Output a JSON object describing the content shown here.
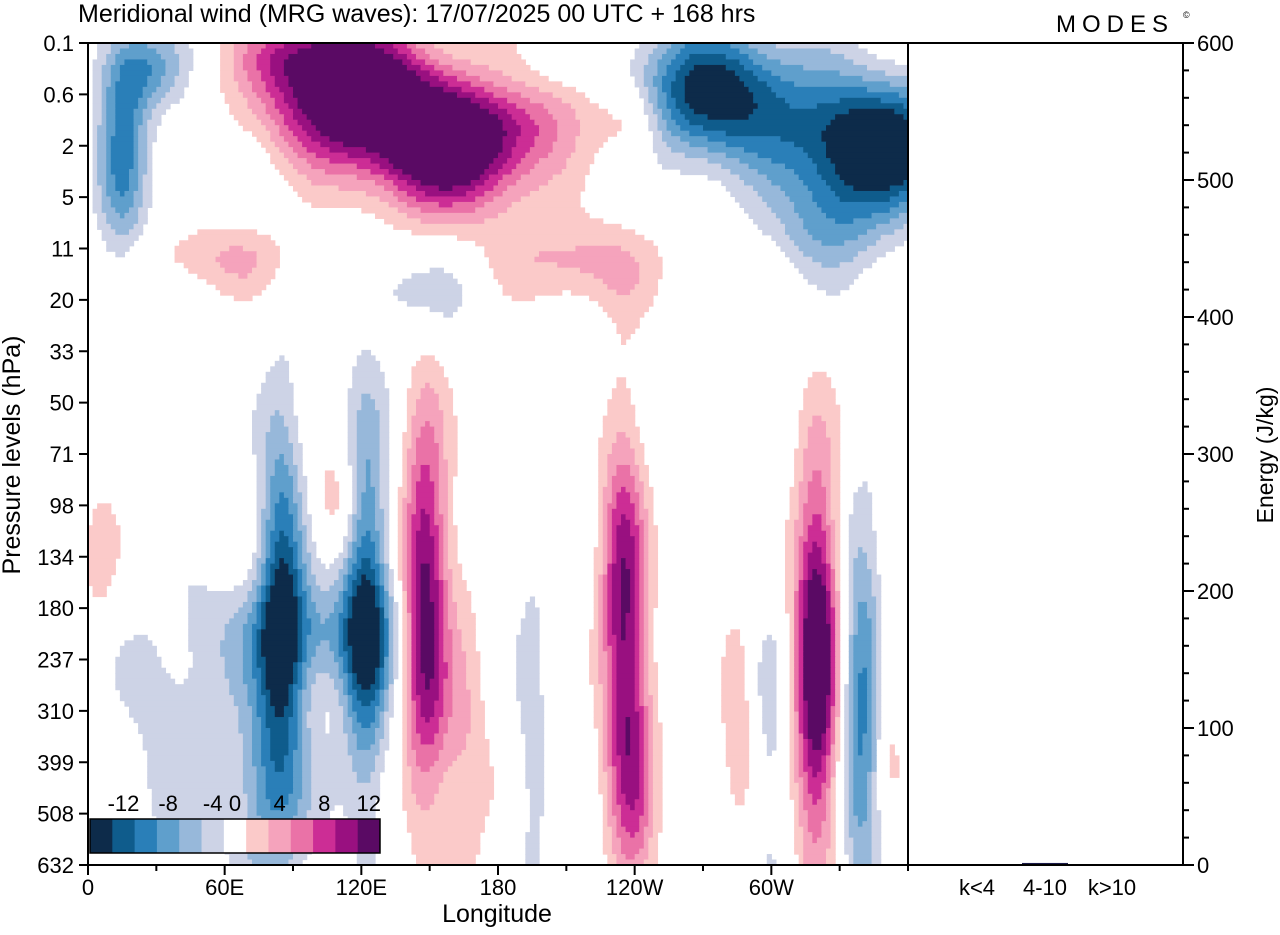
{
  "header": {
    "title": "Meridional wind (MRG waves):  17/07/2025  00 UTC  + 168 hrs",
    "brand": "MODES",
    "brand_mark": "©"
  },
  "chart_data": [
    {
      "type": "heatmap",
      "title": "Meridional wind (MRG waves):  17/07/2025  00 UTC  + 168 hrs",
      "xlabel": "Longitude",
      "ylabel": "Pressure levels (hPa)",
      "x_ticks": [
        "0",
        "60E",
        "120E",
        "180",
        "120W",
        "60W"
      ],
      "x_tick_degrees": [
        0,
        60,
        120,
        180,
        240,
        300
      ],
      "xlim": [
        0,
        360
      ],
      "y_ticks": [
        "0.1",
        "0.6",
        "2",
        "5",
        "11",
        "20",
        "33",
        "50",
        "71",
        "98",
        "134",
        "180",
        "237",
        "310",
        "399",
        "508",
        "632"
      ],
      "y_axis_inverted": true,
      "colorbar": {
        "labels": [
          "-12",
          "-8",
          "-4",
          "0",
          "4",
          "8",
          "12"
        ],
        "levels": [
          -14,
          -12,
          -10,
          -8,
          -6,
          -4,
          -2,
          2,
          4,
          6,
          8,
          10,
          12,
          14
        ],
        "colors": [
          "#0d2b4a",
          "#0f5c8c",
          "#2a7fb8",
          "#5f9fcc",
          "#97b8da",
          "#cdd3e6",
          "#ffffff",
          "#fbcac9",
          "#f5a3bc",
          "#ea72a7",
          "#cc2d95",
          "#991080",
          "#5a0a64"
        ]
      },
      "features": [
        {
          "region": "stratosphere",
          "sign": "positive",
          "lon": 115,
          "level": "0.6",
          "peak": 14
        },
        {
          "region": "stratosphere",
          "sign": "positive",
          "lon": 160,
          "level": "2",
          "peak": 14
        },
        {
          "region": "stratosphere",
          "sign": "negative",
          "lon": 275,
          "level": "0.6",
          "peak": -12
        },
        {
          "region": "stratosphere",
          "sign": "negative",
          "lon": 345,
          "level": "2",
          "peak": -14
        },
        {
          "region": "troposphere",
          "sign": "positive",
          "lon": 148,
          "level": "180",
          "peak": 12
        },
        {
          "region": "troposphere",
          "sign": "positive",
          "lon": 235,
          "level": "180",
          "peak": 10
        },
        {
          "region": "troposphere",
          "sign": "positive",
          "lon": 320,
          "level": "237",
          "peak": 14
        },
        {
          "region": "troposphere",
          "sign": "negative",
          "lon": 85,
          "level": "180",
          "peak": -10
        },
        {
          "region": "troposphere",
          "sign": "negative",
          "lon": 122,
          "level": "180",
          "peak": -10
        },
        {
          "region": "troposphere",
          "sign": "negative",
          "lon": 340,
          "level": "310",
          "peak": -8
        }
      ]
    },
    {
      "type": "bar",
      "ylabel": "Energy (J/kg)",
      "categories": [
        "k<4",
        "4-10",
        "k>10"
      ],
      "values": [
        0.5,
        1.5,
        0.3
      ],
      "ylim": [
        0,
        600
      ],
      "y_ticks": [
        "0",
        "100",
        "200",
        "300",
        "400",
        "500",
        "600"
      ],
      "bar_color": "#1a1a4a"
    }
  ]
}
